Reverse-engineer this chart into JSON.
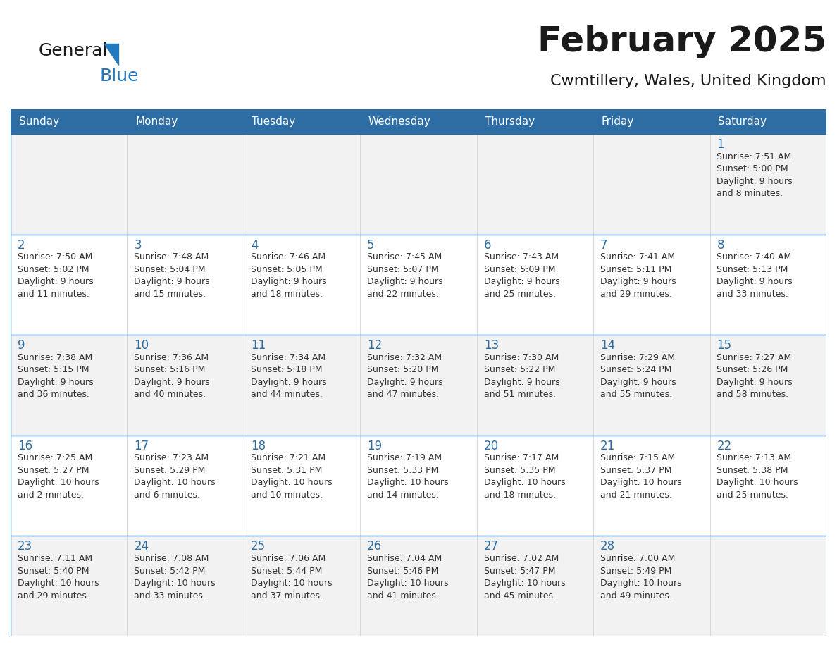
{
  "title": "February 2025",
  "subtitle": "Cwmtillery, Wales, United Kingdom",
  "header_color": "#2E6DA4",
  "header_text_color": "#FFFFFF",
  "row_colors": [
    "#F2F2F2",
    "#FFFFFF",
    "#F2F2F2",
    "#FFFFFF",
    "#F2F2F2"
  ],
  "border_color": "#2E6DA4",
  "cell_border_color": "#AAAAAA",
  "text_color": "#333333",
  "day_number_color": "#2E6DA4",
  "day_headers": [
    "Sunday",
    "Monday",
    "Tuesday",
    "Wednesday",
    "Thursday",
    "Friday",
    "Saturday"
  ],
  "weeks": [
    [
      {
        "day": null,
        "info": null
      },
      {
        "day": null,
        "info": null
      },
      {
        "day": null,
        "info": null
      },
      {
        "day": null,
        "info": null
      },
      {
        "day": null,
        "info": null
      },
      {
        "day": null,
        "info": null
      },
      {
        "day": 1,
        "info": "Sunrise: 7:51 AM\nSunset: 5:00 PM\nDaylight: 9 hours\nand 8 minutes."
      }
    ],
    [
      {
        "day": 2,
        "info": "Sunrise: 7:50 AM\nSunset: 5:02 PM\nDaylight: 9 hours\nand 11 minutes."
      },
      {
        "day": 3,
        "info": "Sunrise: 7:48 AM\nSunset: 5:04 PM\nDaylight: 9 hours\nand 15 minutes."
      },
      {
        "day": 4,
        "info": "Sunrise: 7:46 AM\nSunset: 5:05 PM\nDaylight: 9 hours\nand 18 minutes."
      },
      {
        "day": 5,
        "info": "Sunrise: 7:45 AM\nSunset: 5:07 PM\nDaylight: 9 hours\nand 22 minutes."
      },
      {
        "day": 6,
        "info": "Sunrise: 7:43 AM\nSunset: 5:09 PM\nDaylight: 9 hours\nand 25 minutes."
      },
      {
        "day": 7,
        "info": "Sunrise: 7:41 AM\nSunset: 5:11 PM\nDaylight: 9 hours\nand 29 minutes."
      },
      {
        "day": 8,
        "info": "Sunrise: 7:40 AM\nSunset: 5:13 PM\nDaylight: 9 hours\nand 33 minutes."
      }
    ],
    [
      {
        "day": 9,
        "info": "Sunrise: 7:38 AM\nSunset: 5:15 PM\nDaylight: 9 hours\nand 36 minutes."
      },
      {
        "day": 10,
        "info": "Sunrise: 7:36 AM\nSunset: 5:16 PM\nDaylight: 9 hours\nand 40 minutes."
      },
      {
        "day": 11,
        "info": "Sunrise: 7:34 AM\nSunset: 5:18 PM\nDaylight: 9 hours\nand 44 minutes."
      },
      {
        "day": 12,
        "info": "Sunrise: 7:32 AM\nSunset: 5:20 PM\nDaylight: 9 hours\nand 47 minutes."
      },
      {
        "day": 13,
        "info": "Sunrise: 7:30 AM\nSunset: 5:22 PM\nDaylight: 9 hours\nand 51 minutes."
      },
      {
        "day": 14,
        "info": "Sunrise: 7:29 AM\nSunset: 5:24 PM\nDaylight: 9 hours\nand 55 minutes."
      },
      {
        "day": 15,
        "info": "Sunrise: 7:27 AM\nSunset: 5:26 PM\nDaylight: 9 hours\nand 58 minutes."
      }
    ],
    [
      {
        "day": 16,
        "info": "Sunrise: 7:25 AM\nSunset: 5:27 PM\nDaylight: 10 hours\nand 2 minutes."
      },
      {
        "day": 17,
        "info": "Sunrise: 7:23 AM\nSunset: 5:29 PM\nDaylight: 10 hours\nand 6 minutes."
      },
      {
        "day": 18,
        "info": "Sunrise: 7:21 AM\nSunset: 5:31 PM\nDaylight: 10 hours\nand 10 minutes."
      },
      {
        "day": 19,
        "info": "Sunrise: 7:19 AM\nSunset: 5:33 PM\nDaylight: 10 hours\nand 14 minutes."
      },
      {
        "day": 20,
        "info": "Sunrise: 7:17 AM\nSunset: 5:35 PM\nDaylight: 10 hours\nand 18 minutes."
      },
      {
        "day": 21,
        "info": "Sunrise: 7:15 AM\nSunset: 5:37 PM\nDaylight: 10 hours\nand 21 minutes."
      },
      {
        "day": 22,
        "info": "Sunrise: 7:13 AM\nSunset: 5:38 PM\nDaylight: 10 hours\nand 25 minutes."
      }
    ],
    [
      {
        "day": 23,
        "info": "Sunrise: 7:11 AM\nSunset: 5:40 PM\nDaylight: 10 hours\nand 29 minutes."
      },
      {
        "day": 24,
        "info": "Sunrise: 7:08 AM\nSunset: 5:42 PM\nDaylight: 10 hours\nand 33 minutes."
      },
      {
        "day": 25,
        "info": "Sunrise: 7:06 AM\nSunset: 5:44 PM\nDaylight: 10 hours\nand 37 minutes."
      },
      {
        "day": 26,
        "info": "Sunrise: 7:04 AM\nSunset: 5:46 PM\nDaylight: 10 hours\nand 41 minutes."
      },
      {
        "day": 27,
        "info": "Sunrise: 7:02 AM\nSunset: 5:47 PM\nDaylight: 10 hours\nand 45 minutes."
      },
      {
        "day": 28,
        "info": "Sunrise: 7:00 AM\nSunset: 5:49 PM\nDaylight: 10 hours\nand 49 minutes."
      },
      {
        "day": null,
        "info": null
      }
    ]
  ],
  "logo_color_general": "#1a1a1a",
  "logo_color_blue": "#2279BD",
  "logo_triangle_color": "#2279BD",
  "title_fontsize": 36,
  "subtitle_fontsize": 16,
  "header_fontsize": 11,
  "day_num_fontsize": 12,
  "info_fontsize": 9
}
